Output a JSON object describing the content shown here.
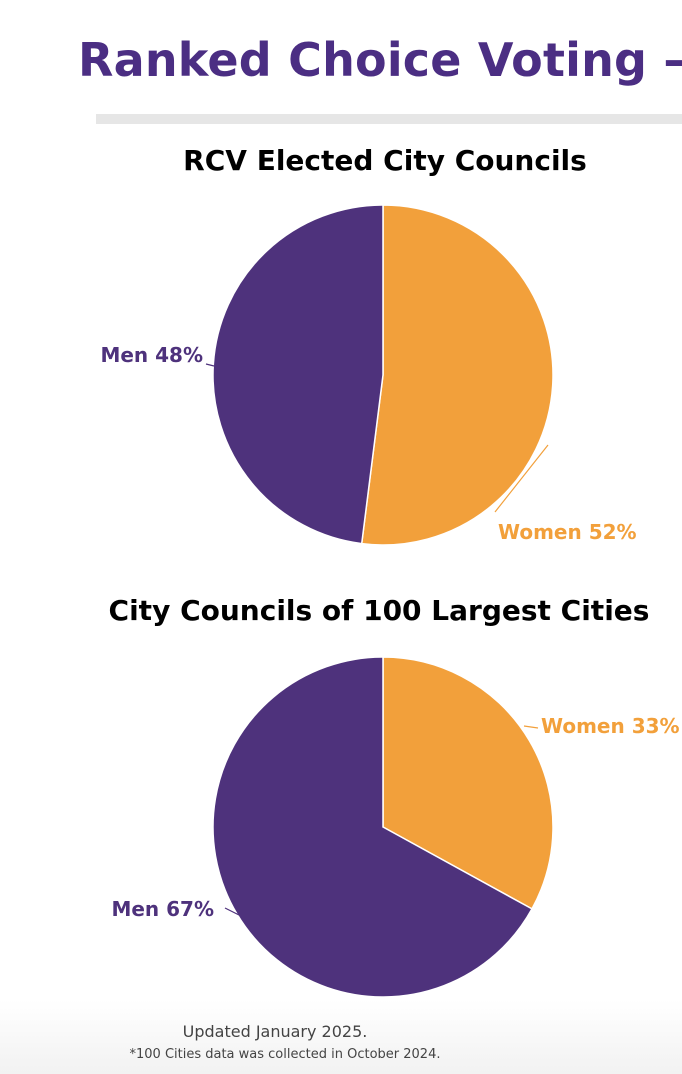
{
  "header": {
    "title": "Ranked Choice Voting –"
  },
  "colors": {
    "men": "#4e327c",
    "women": "#f2a03b",
    "title": "#4b2e83"
  },
  "chart_data": [
    {
      "type": "pie",
      "title": "RCV Elected City Councils",
      "slices": [
        {
          "label": "Women 52%",
          "value": 52,
          "color": "#f2a03b"
        },
        {
          "label": "Men 48%",
          "value": 48,
          "color": "#4e327c"
        }
      ]
    },
    {
      "type": "pie",
      "title": "City Councils of 100 Largest Cities",
      "slices": [
        {
          "label": "Women 33%",
          "value": 33,
          "color": "#f2a03b"
        },
        {
          "label": "Men 67%",
          "value": 67,
          "color": "#4e327c"
        }
      ]
    }
  ],
  "footer": {
    "updated": "Updated January 2025.",
    "note": "*100 Cities data was collected in October 2024."
  }
}
